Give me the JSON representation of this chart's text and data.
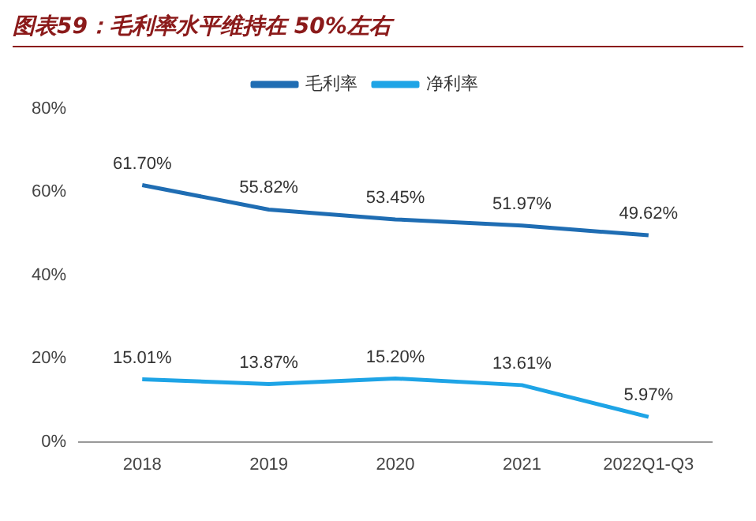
{
  "chart_data": {
    "type": "line",
    "title": "图表59：毛利率水平维持在 50%左右",
    "categories": [
      "2018",
      "2019",
      "2020",
      "2021",
      "2022Q1-Q3"
    ],
    "series": [
      {
        "name": "毛利率",
        "color": "#1f6db3",
        "values": [
          61.7,
          55.82,
          53.45,
          51.97,
          49.62
        ],
        "value_labels": [
          "61.70%",
          "55.82%",
          "53.45%",
          "51.97%",
          "49.62%"
        ]
      },
      {
        "name": "净利率",
        "color": "#1ea4e6",
        "values": [
          15.01,
          13.87,
          15.2,
          13.61,
          5.97
        ],
        "value_labels": [
          "15.01%",
          "13.87%",
          "15.20%",
          "13.61%",
          "5.97%"
        ]
      }
    ],
    "ylim": [
      0,
      80
    ],
    "yticks": [
      {
        "value": 0,
        "label": "0%"
      },
      {
        "value": 20,
        "label": "20%"
      },
      {
        "value": 40,
        "label": "40%"
      },
      {
        "value": 60,
        "label": "60%"
      },
      {
        "value": 80,
        "label": "80%"
      }
    ],
    "grid": false,
    "legend": "top",
    "marker": "none",
    "line_style": "solid"
  }
}
